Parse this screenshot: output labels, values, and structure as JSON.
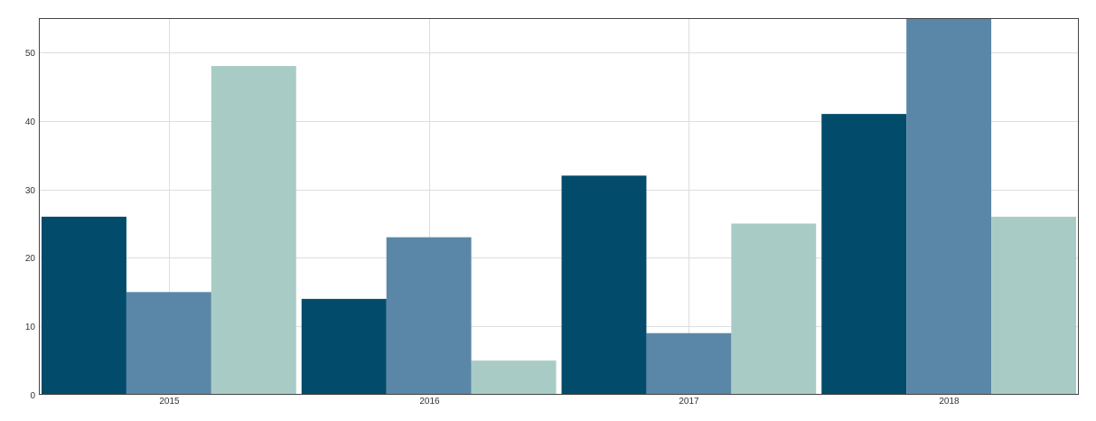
{
  "chart_data": {
    "type": "bar",
    "categories": [
      "2015",
      "2016",
      "2017",
      "2018"
    ],
    "series": [
      {
        "values": [
          26,
          14,
          32,
          41
        ],
        "color": "#034b6b"
      },
      {
        "values": [
          15,
          23,
          9,
          55
        ],
        "color": "#5a87a7"
      },
      {
        "values": [
          48,
          5,
          25,
          26
        ],
        "color": "#a8ccc5"
      }
    ],
    "ylim": [
      0,
      55
    ],
    "yticks": [
      "0",
      "10",
      "20",
      "30",
      "40",
      "50"
    ],
    "grid": true,
    "legend": "none"
  },
  "colors": {
    "grid": "#dedede",
    "frame": "#444444",
    "tick_text": "#333333"
  }
}
